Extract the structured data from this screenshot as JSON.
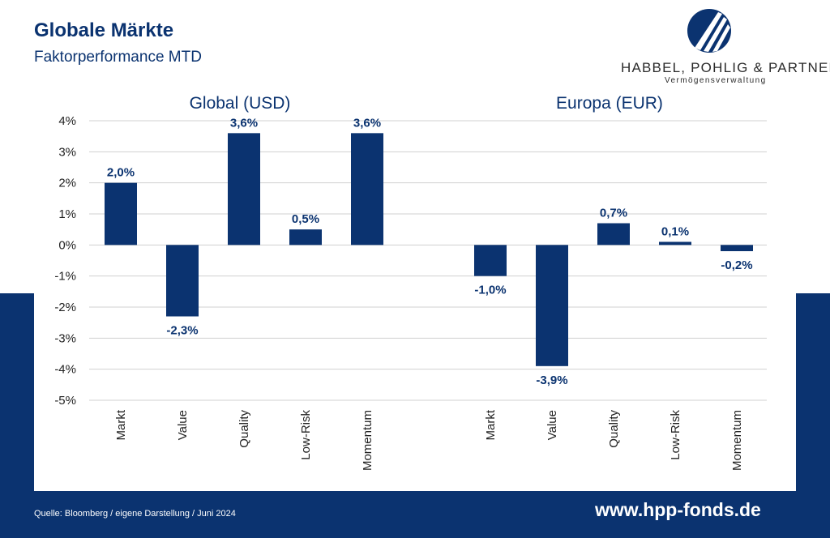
{
  "header": {
    "title": "Globale Märkte",
    "subtitle": "Faktorperformance MTD"
  },
  "logo": {
    "name": "HABBEL, POHLIG & PARTNER",
    "tagline": "Vermögensverwaltung",
    "icon": "hpp-logo-icon"
  },
  "colors": {
    "bar": "#0b3370",
    "band": "#0b3370",
    "grid": "#d0d0d0",
    "text": "#0b3370",
    "axis_text": "#222222"
  },
  "chart_data": [
    {
      "type": "bar",
      "title": "Global (USD)",
      "categories": [
        "Markt",
        "Value",
        "Quality",
        "Low-Risk",
        "Momentum"
      ],
      "values": [
        2.0,
        -2.3,
        3.6,
        0.5,
        3.6
      ],
      "data_labels": [
        "2,0%",
        "-2,3%",
        "3,6%",
        "0,5%",
        "3,6%"
      ],
      "ylim": [
        -5,
        4
      ],
      "yticks": [
        "4%",
        "3%",
        "2%",
        "1%",
        "0%",
        "-1%",
        "-2%",
        "-3%",
        "-4%",
        "-5%"
      ],
      "grid": true
    },
    {
      "type": "bar",
      "title": "Europa (EUR)",
      "categories": [
        "Markt",
        "Value",
        "Quality",
        "Low-Risk",
        "Momentum"
      ],
      "values": [
        -1.0,
        -3.9,
        0.7,
        0.1,
        -0.2
      ],
      "data_labels": [
        "-1,0%",
        "-3,9%",
        "0,7%",
        "0,1%",
        "-0,2%"
      ],
      "ylim": [
        -5,
        4
      ],
      "grid": true
    }
  ],
  "footer": {
    "source": "Quelle: Bloomberg / eigene Darstellung / Juni 2024",
    "website": "www.hpp-fonds.de"
  }
}
